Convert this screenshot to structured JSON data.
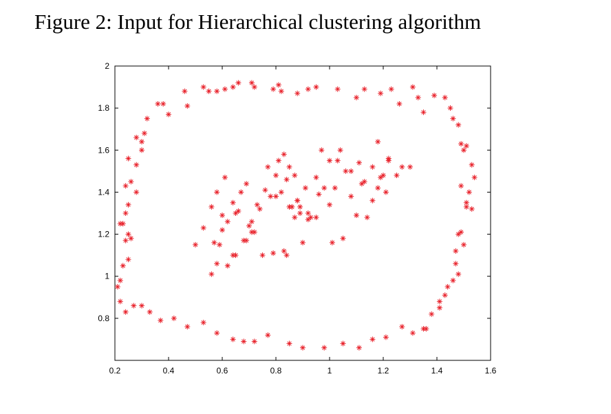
{
  "caption": "Figure 2: Input for Hierarchical clustering algorithm",
  "colors": {
    "marker": "#e8212a",
    "axis": "#000000",
    "background": "#ffffff"
  },
  "chart_data": {
    "type": "scatter",
    "title": "",
    "xlabel": "",
    "ylabel": "",
    "xlim": [
      0.2,
      1.6
    ],
    "ylim": [
      0.6,
      2.0
    ],
    "x_ticks": [
      0.2,
      0.4,
      0.6,
      0.8,
      1.0,
      1.2,
      1.4,
      1.6
    ],
    "x_tick_labels": [
      "0.2",
      "0.4",
      "0.6",
      "0.8",
      "1",
      "1.2",
      "1.4",
      "1.6"
    ],
    "y_ticks": [
      0.8,
      1.0,
      1.2,
      1.4,
      1.6,
      1.8,
      2.0
    ],
    "y_tick_labels": [
      "0.8",
      "1",
      "1.2",
      "1.4",
      "1.6",
      "1.8",
      "2"
    ],
    "grid": false,
    "marker": "asterisk",
    "series": [
      {
        "x": [
          0.38,
          0.4,
          0.46,
          0.47,
          0.53,
          0.55,
          0.58,
          0.61,
          0.64,
          0.66,
          0.71,
          0.72,
          0.79,
          0.81,
          0.82,
          0.88,
          0.92,
          0.95,
          1.03,
          1.1,
          1.13,
          1.19,
          1.23,
          1.26,
          1.31,
          1.33,
          1.35,
          1.39,
          1.43,
          1.45,
          1.46,
          1.48,
          1.49,
          1.5,
          1.51,
          1.53,
          1.54,
          1.52,
          1.49,
          1.51,
          1.51,
          1.53,
          1.49,
          1.48,
          1.5,
          1.47,
          1.47,
          1.48,
          1.46,
          1.44,
          1.41,
          1.43,
          1.41,
          1.38,
          1.36,
          1.35,
          1.31,
          1.27,
          1.21,
          1.16,
          1.11,
          1.05,
          0.98,
          0.9,
          0.85,
          0.77,
          0.72,
          0.68,
          0.64,
          0.58,
          0.53,
          0.47,
          0.42,
          0.37,
          0.33,
          0.3,
          0.27,
          0.24,
          0.22,
          0.21,
          0.22,
          0.23,
          0.25,
          0.26,
          0.24,
          0.25,
          0.23,
          0.22,
          0.24,
          0.25,
          0.28,
          0.24,
          0.26,
          0.28,
          0.25,
          0.3,
          0.3,
          0.31,
          0.32,
          0.28,
          0.36
        ],
        "y": [
          1.82,
          1.77,
          1.88,
          1.81,
          1.9,
          1.88,
          1.88,
          1.89,
          1.9,
          1.92,
          1.92,
          1.9,
          1.89,
          1.91,
          1.88,
          1.87,
          1.89,
          1.9,
          1.89,
          1.85,
          1.89,
          1.87,
          1.89,
          1.82,
          1.9,
          1.85,
          1.78,
          1.86,
          1.85,
          1.8,
          1.75,
          1.72,
          1.63,
          1.6,
          1.62,
          1.53,
          1.47,
          1.4,
          1.43,
          1.35,
          1.33,
          1.32,
          1.21,
          1.2,
          1.15,
          1.12,
          1.06,
          1.01,
          0.98,
          0.95,
          0.88,
          0.91,
          0.85,
          0.82,
          0.75,
          0.75,
          0.73,
          0.76,
          0.71,
          0.7,
          0.66,
          0.68,
          0.66,
          0.66,
          0.68,
          0.72,
          0.69,
          0.69,
          0.7,
          0.73,
          0.78,
          0.76,
          0.8,
          0.79,
          0.83,
          0.86,
          0.86,
          0.83,
          0.88,
          0.95,
          0.98,
          1.05,
          1.08,
          1.18,
          1.17,
          1.2,
          1.25,
          1.25,
          1.3,
          1.34,
          1.4,
          1.43,
          1.45,
          1.53,
          1.56,
          1.6,
          1.64,
          1.68,
          1.75,
          1.66,
          1.82
        ]
      },
      {
        "x": [
          0.5,
          0.53,
          0.56,
          0.57,
          0.58,
          0.6,
          0.61,
          0.64,
          0.65,
          0.67,
          0.69,
          0.71,
          0.72,
          0.75,
          0.77,
          0.8,
          0.81,
          0.83,
          0.84,
          0.85,
          0.87,
          0.88,
          0.89,
          0.91,
          0.93,
          0.95,
          0.97,
          1.0,
          1.02,
          1.04,
          1.06,
          1.08,
          1.11,
          1.13,
          1.16,
          1.18,
          1.2,
          1.22,
          1.25,
          1.27,
          1.3,
          0.56,
          0.59,
          0.62,
          0.65,
          0.68,
          0.7,
          0.73,
          0.78,
          0.82,
          0.85,
          0.87,
          0.9,
          0.92,
          0.95,
          0.98,
          1.0,
          1.03,
          1.08,
          1.12,
          1.16,
          1.19,
          1.22,
          0.58,
          0.62,
          0.66,
          0.71,
          0.76,
          0.8,
          0.84,
          0.88,
          0.92,
          0.96,
          1.01,
          1.05,
          1.1,
          1.14,
          1.18,
          1.21,
          0.6,
          0.64,
          0.69,
          0.74,
          0.79,
          0.83,
          0.86,
          0.89
        ],
        "y": [
          1.15,
          1.23,
          1.33,
          1.16,
          1.06,
          1.22,
          1.47,
          1.35,
          1.1,
          1.4,
          1.44,
          1.26,
          1.21,
          1.1,
          1.52,
          1.48,
          1.55,
          1.58,
          1.46,
          1.52,
          1.48,
          1.36,
          1.33,
          1.42,
          1.28,
          1.47,
          1.6,
          1.55,
          1.42,
          1.6,
          1.5,
          1.38,
          1.54,
          1.45,
          1.52,
          1.42,
          1.48,
          1.56,
          1.48,
          1.52,
          1.52,
          1.01,
          1.15,
          1.26,
          1.3,
          1.17,
          1.24,
          1.34,
          1.38,
          1.4,
          1.33,
          1.28,
          1.16,
          1.3,
          1.28,
          1.42,
          1.34,
          1.55,
          1.5,
          1.44,
          1.36,
          1.47,
          1.55,
          1.4,
          1.05,
          1.31,
          1.21,
          1.41,
          1.38,
          1.1,
          1.36,
          1.27,
          1.39,
          1.16,
          1.18,
          1.29,
          1.28,
          1.64,
          1.4,
          1.29,
          1.1,
          1.17,
          1.32,
          1.11,
          1.12,
          1.33,
          1.3
        ]
      }
    ]
  }
}
